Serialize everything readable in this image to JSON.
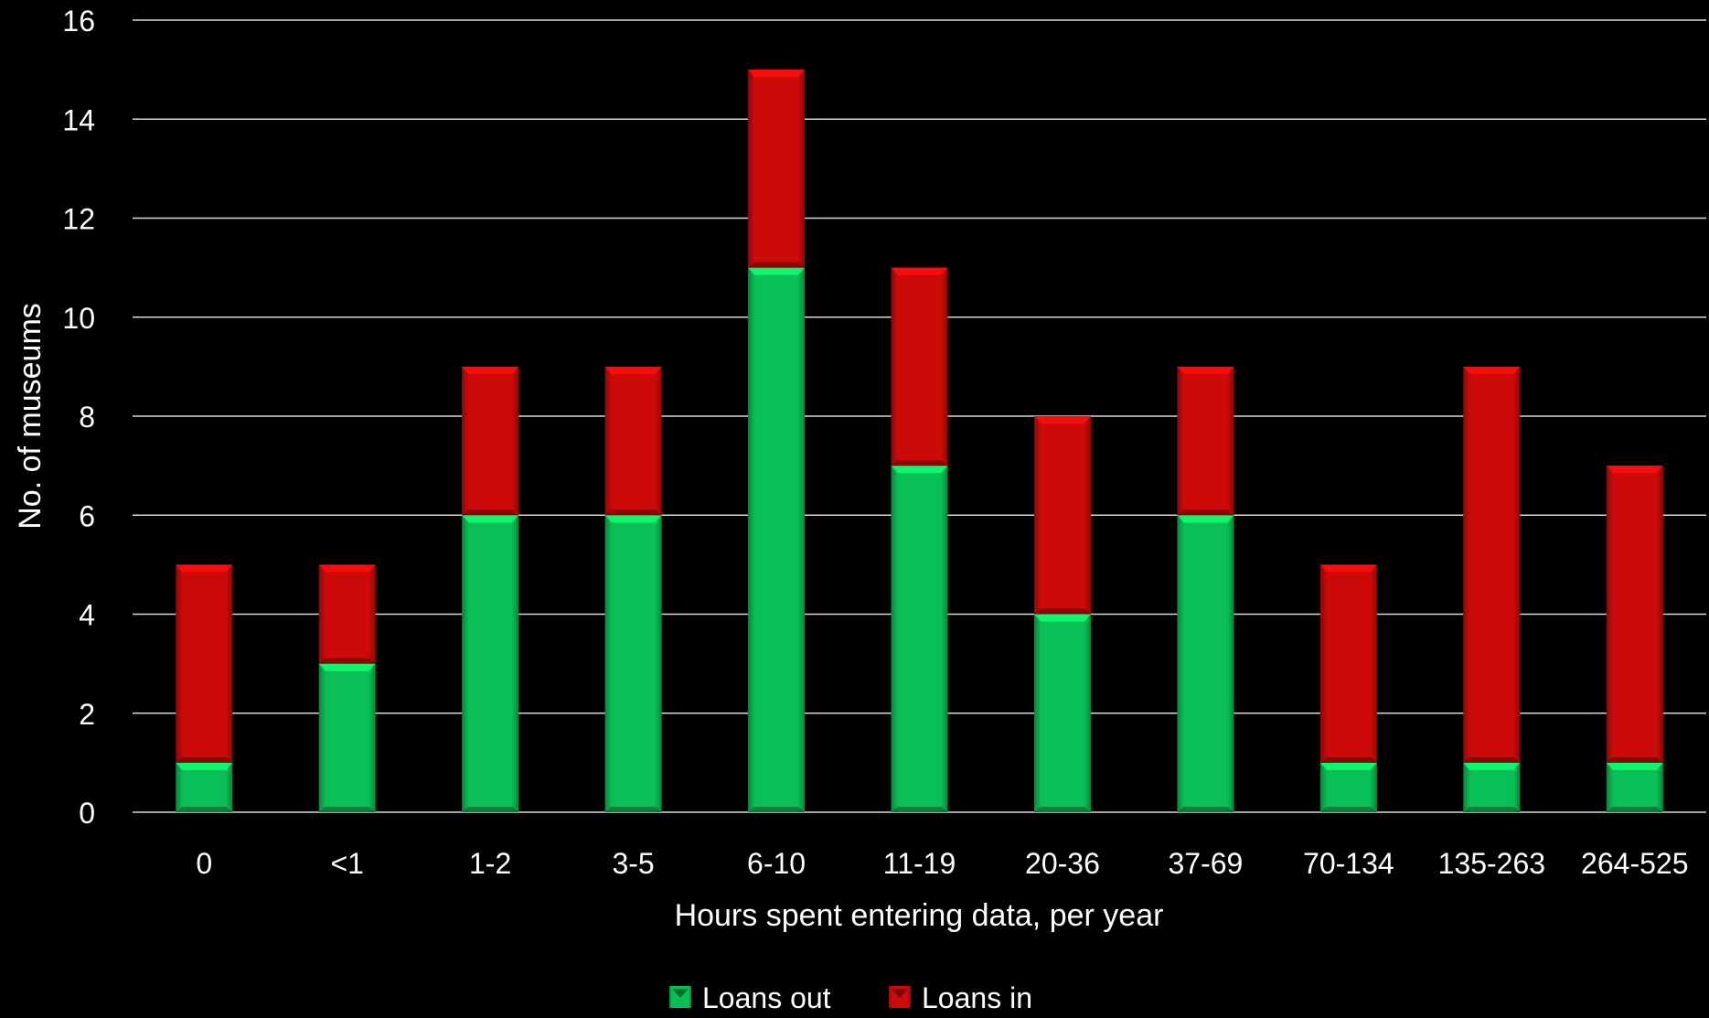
{
  "chart_data": {
    "type": "bar",
    "stacked": true,
    "title": "",
    "xlabel": "Hours spent entering data, per year",
    "ylabel": "No. of museums",
    "categories": [
      "0",
      "<1",
      "1-2",
      "3-5",
      "6-10",
      "11-19",
      "20-36",
      "37-69",
      "70-134",
      "135-263",
      "264-525"
    ],
    "series": [
      {
        "name": "Loans out",
        "color": "#0abf55",
        "values": [
          1,
          3,
          6,
          6,
          11,
          7,
          4,
          6,
          1,
          1,
          1
        ]
      },
      {
        "name": "Loans in",
        "color": "#cc0a0a",
        "values": [
          4,
          2,
          3,
          3,
          4,
          4,
          4,
          3,
          4,
          8,
          6
        ]
      }
    ],
    "ylim": [
      0,
      16
    ],
    "yticks": [
      0,
      2,
      4,
      6,
      8,
      10,
      12,
      14,
      16
    ],
    "grid": true,
    "legend_position": "bottom",
    "background": "#000000",
    "text_color": "#ffffff",
    "gridline_color": "#d9d9d9"
  }
}
